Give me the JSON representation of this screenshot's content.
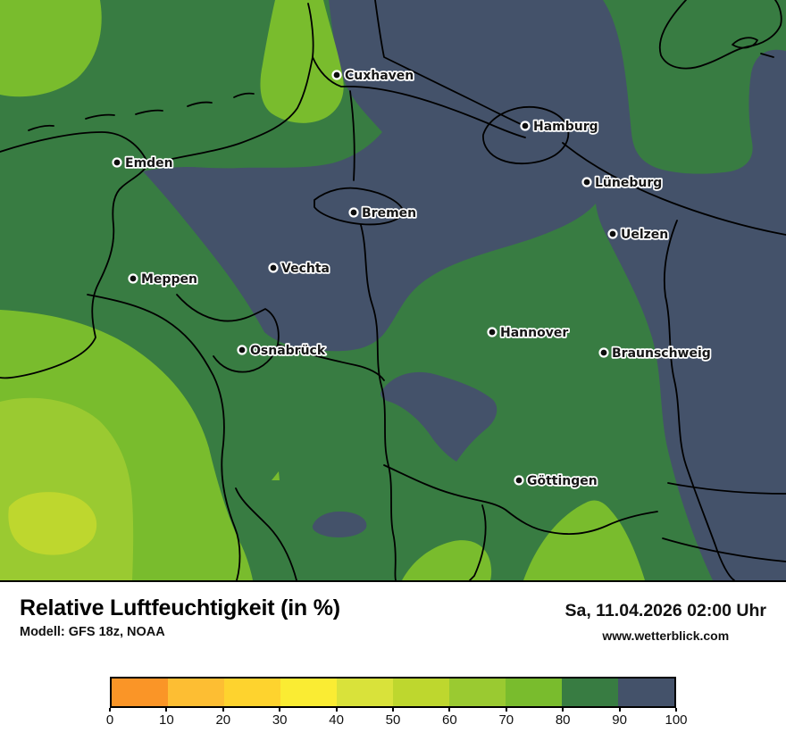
{
  "footer": {
    "title": "Relative Luftfeuchtigkeit (in %)",
    "model": "Modell: GFS 18z, NOAA",
    "datetime": "Sa, 11.04.2026 02:00 Uhr",
    "website": "www.wetterblick.com"
  },
  "map": {
    "cities": [
      {
        "name": "Cuxhaven"
      },
      {
        "name": "Hamburg"
      },
      {
        "name": "Emden"
      },
      {
        "name": "Lüneburg"
      },
      {
        "name": "Bremen"
      },
      {
        "name": "Uelzen"
      },
      {
        "name": "Vechta"
      },
      {
        "name": "Meppen"
      },
      {
        "name": "Hannover"
      },
      {
        "name": "Osnabrück"
      },
      {
        "name": "Braunschweig"
      },
      {
        "name": "Göttingen"
      }
    ],
    "levels": {
      "50-60": "#BED72E",
      "60-70": "#9ACA31",
      "70-80": "#79BC2D",
      "80-90": "#387C42",
      "90-100": "#44526A"
    }
  },
  "chart_data": {
    "type": "heatmap",
    "title": "Relative Luftfeuchtigkeit (in %)",
    "legend_position": "bottom",
    "colorbar": {
      "ticks": [
        "0",
        "10",
        "20",
        "30",
        "40",
        "50",
        "60",
        "70",
        "80",
        "90",
        "100"
      ],
      "range": [
        0,
        100
      ],
      "segments": [
        {
          "range": "0-10",
          "color": "#FA9527"
        },
        {
          "range": "10-20",
          "color": "#FDBE33"
        },
        {
          "range": "20-30",
          "color": "#FED32E"
        },
        {
          "range": "30-40",
          "color": "#FAEC33"
        },
        {
          "range": "40-50",
          "color": "#D9E23A"
        },
        {
          "range": "50-60",
          "color": "#BED72E"
        },
        {
          "range": "60-70",
          "color": "#9ACA31"
        },
        {
          "range": "70-80",
          "color": "#79BC2D"
        },
        {
          "range": "80-90",
          "color": "#387C42"
        },
        {
          "range": "90-100",
          "color": "#44526A"
        }
      ]
    },
    "map_values_percent": [
      {
        "location": "Cuxhaven",
        "band": "80-90"
      },
      {
        "location": "Hamburg",
        "band": "90-100"
      },
      {
        "location": "Emden",
        "band": "80-90"
      },
      {
        "location": "Lüneburg",
        "band": "90-100"
      },
      {
        "location": "Bremen",
        "band": "90-100"
      },
      {
        "location": "Uelzen",
        "band": "90-100"
      },
      {
        "location": "Vechta",
        "band": "90-100"
      },
      {
        "location": "Meppen",
        "band": "80-90"
      },
      {
        "location": "Hannover",
        "band": "80-90"
      },
      {
        "location": "Osnabrück",
        "band": "80-90"
      },
      {
        "location": "Braunschweig",
        "band": "80-90"
      },
      {
        "location": "Göttingen",
        "band": "80-90"
      }
    ]
  }
}
